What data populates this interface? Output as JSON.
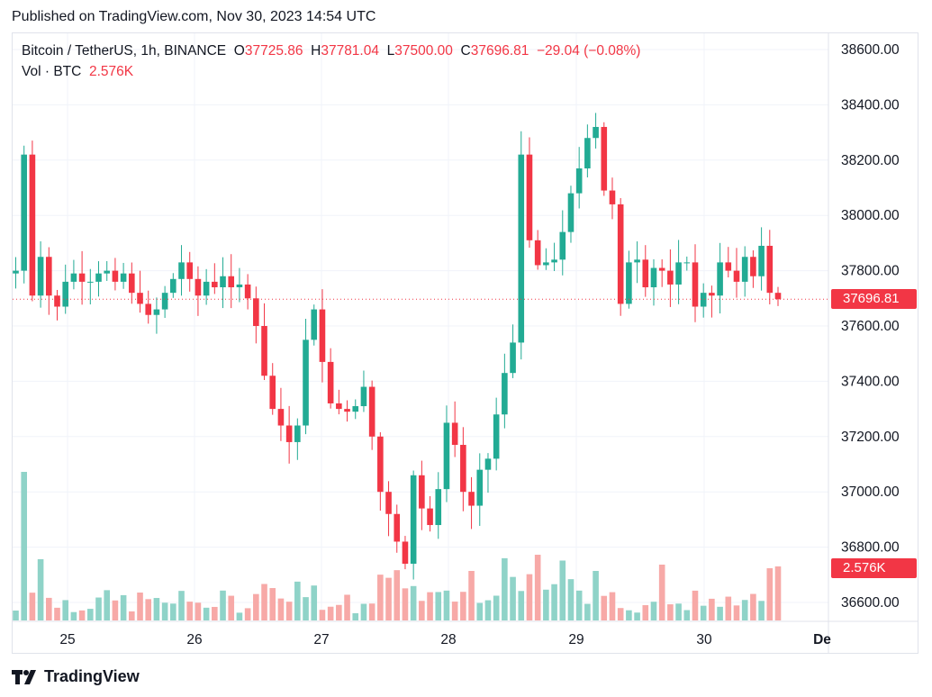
{
  "header": {
    "published": "Published on TradingView.com, Nov 30, 2023 14:54 UTC"
  },
  "legend": {
    "symbol": "Bitcoin / TetherUS, 1h, BINANCE",
    "o_label": "O",
    "o_value": "37725.86",
    "h_label": "H",
    "h_value": "37781.04",
    "l_label": "L",
    "l_value": "37500.00",
    "c_label": "C",
    "c_value": "37696.81",
    "change": "−29.04 (−0.08%)",
    "vol_label": "Vol · BTC",
    "vol_value": "2.576K"
  },
  "price_tag": "37696.81",
  "volume_tag": "2.576K",
  "footer": {
    "brand": "TradingView"
  },
  "colors": {
    "up": "#22ab94",
    "down": "#f23645",
    "up_volume": "#8fd3c8",
    "down_volume": "#f7a9a7",
    "grid": "#f0f3fa"
  },
  "chart_data": {
    "type": "candlestick",
    "symbol": "BTCUSDT",
    "interval": "1h",
    "y_axis_ticks": [
      "36600.00",
      "36800.00",
      "37000.00",
      "37200.00",
      "37400.00",
      "37600.00",
      "37800.00",
      "38000.00",
      "38200.00",
      "38400.00",
      "38600.00"
    ],
    "x_axis_ticks": [
      "25",
      "26",
      "27",
      "28",
      "29",
      "30",
      "De"
    ],
    "ylim": [
      36500,
      38650
    ],
    "last_close": 37696.81,
    "grid": true,
    "series": [
      {
        "name": "price",
        "closes": [
          37800,
          38220,
          37710,
          37850,
          37710,
          37670,
          37760,
          37790,
          37760,
          37760,
          37790,
          37800,
          37760,
          37790,
          37720,
          37680,
          37640,
          37660,
          37720,
          37770,
          37830,
          37770,
          37710,
          37760,
          37740,
          37780,
          37740,
          37750,
          37700,
          37600,
          37420,
          37300,
          37240,
          37180,
          37240,
          37550,
          37660,
          37470,
          37320,
          37300,
          37290,
          37310,
          37380,
          37200,
          37000,
          36920,
          36820,
          36740,
          37060,
          36940,
          36880,
          37010,
          37250,
          37170,
          37000,
          36950,
          37080,
          37120,
          37280,
          37430,
          37540,
          38220,
          37910,
          37820,
          37830,
          37840,
          37940,
          38080,
          38170,
          38280,
          38320,
          38090,
          38040,
          37680,
          37830,
          37840,
          37740,
          37810,
          37800,
          37750,
          37830,
          37830,
          37670,
          37720,
          37710,
          37830,
          37800,
          37760,
          37850,
          37780,
          37890,
          37720,
          37696.81
        ]
      }
    ]
  }
}
